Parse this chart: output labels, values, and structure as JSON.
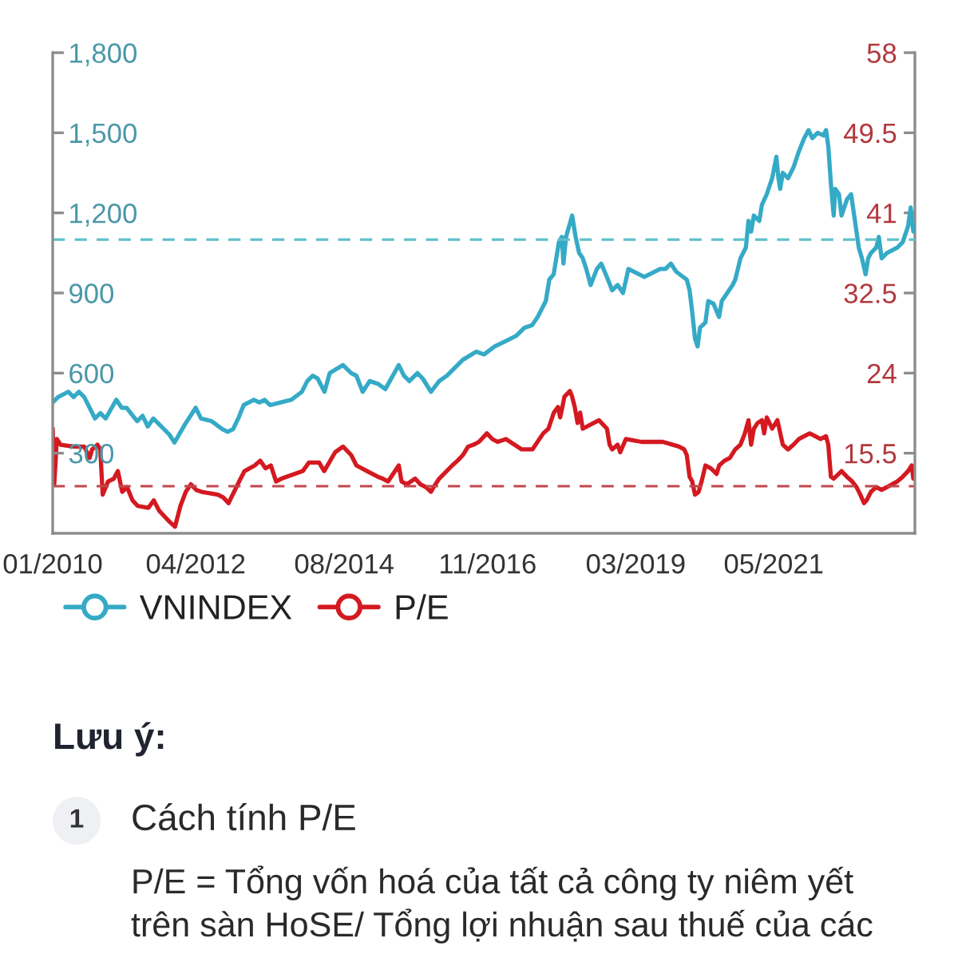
{
  "chart_data": {
    "type": "line",
    "xlim": [
      "2010-01-01",
      "2023-07-20"
    ],
    "xticks": [
      {
        "value": "2010-01",
        "label": "01/2010"
      },
      {
        "value": "2012-04",
        "label": "04/2012"
      },
      {
        "value": "2014-08",
        "label": "08/2014"
      },
      {
        "value": "2016-11",
        "label": "11/2016"
      },
      {
        "value": "2019-03",
        "label": "03/2019"
      },
      {
        "value": "2021-05",
        "label": "05/2021"
      }
    ],
    "ylim": [
      0,
      1800
    ],
    "yticks": [
      300,
      600,
      900,
      {
        "value": 1200,
        "label": "1,200"
      },
      {
        "value": 1500,
        "label": "1,500"
      },
      {
        "value": 1800,
        "label": "1,800"
      }
    ],
    "y2lim": [
      7,
      58
    ],
    "y2ticks": [
      15.5,
      24,
      32.5,
      41,
      49.5,
      58
    ],
    "series": [
      {
        "name": "VNINDEX",
        "color": "#35aac6",
        "x": [
          "2010-01-01",
          "2010-02-01",
          "2010-04-01",
          "2010-05-01",
          "2010-06-01",
          "2010-07-01",
          "2010-09-01",
          "2010-10-01",
          "2010-11-01",
          "2011-01-01",
          "2011-02-01",
          "2011-03-01",
          "2011-05-01",
          "2011-06-01",
          "2011-07-01",
          "2011-08-01",
          "2011-09-01",
          "2011-11-01",
          "2011-12-01",
          "2012-02-01",
          "2012-04-01",
          "2012-05-01",
          "2012-07-01",
          "2012-09-01",
          "2012-10-01",
          "2012-11-01",
          "2012-12-01",
          "2013-01-01",
          "2013-03-01",
          "2013-04-01",
          "2013-05-01",
          "2013-06-01",
          "2013-08-01",
          "2013-10-01",
          "2013-12-01",
          "2014-01-01",
          "2014-02-01",
          "2014-03-01",
          "2014-04-10",
          "2014-05-10",
          "2014-07-25",
          "2014-09-10",
          "2014-10-10",
          "2014-11-15",
          "2014-12-25",
          "2015-02-10",
          "2015-03-25",
          "2015-06-10",
          "2015-07-10",
          "2015-08-10",
          "2015-09-25",
          "2015-10-25",
          "2015-12-12",
          "2016-01-28",
          "2016-03-12",
          "2016-05-12",
          "2016-06-12",
          "2016-08-28",
          "2016-10-12",
          "2016-12-12",
          "2017-02-14",
          "2017-04-15",
          "2017-06-01",
          "2017-07-15",
          "2017-08-15",
          "2017-10-01",
          "2017-10-21",
          "2017-11-15",
          "2017-12-15",
          "2018-01-01",
          "2018-01-10",
          "2018-01-25",
          "2018-03-01",
          "2018-03-21",
          "2018-04-10",
          "2018-05-01",
          "2018-05-21",
          "2018-06-15",
          "2018-07-21",
          "2018-08-15",
          "2018-09-10",
          "2018-10-17",
          "2018-11-17",
          "2018-12-18",
          "2019-01-18",
          "2019-04-19",
          "2019-07-19",
          "2019-08-19",
          "2019-09-19",
          "2019-10-19",
          "2019-12-19",
          "2020-01-04",
          "2020-01-19",
          "2020-02-04",
          "2020-02-19",
          "2020-03-04",
          "2020-04-04",
          "2020-04-20",
          "2020-05-20",
          "2020-06-21",
          "2020-07-07",
          "2020-08-07",
          "2020-09-07",
          "2020-09-22",
          "2020-10-22",
          "2020-11-22",
          "2020-12-07",
          "2020-12-22",
          "2021-01-07",
          "2021-02-07",
          "2021-02-22",
          "2021-03-22",
          "2021-04-22",
          "2021-05-16",
          "2021-05-28",
          "2021-06-07",
          "2021-06-22",
          "2021-07-22",
          "2021-08-22",
          "2021-09-22",
          "2021-10-23",
          "2021-11-17",
          "2021-12-08",
          "2022-01-08",
          "2022-02-10",
          "2022-02-25",
          "2022-03-10",
          "2022-03-25",
          "2022-04-10",
          "2022-04-19",
          "2022-05-10",
          "2022-05-25",
          "2022-06-25",
          "2022-07-19",
          "2022-08-10",
          "2022-09-01",
          "2022-09-19",
          "2022-10-10",
          "2022-10-25",
          "2022-11-10",
          "2022-12-10",
          "2022-12-25",
          "2023-01-10",
          "2023-02-10",
          "2023-04-10",
          "2023-05-11",
          "2023-06-11",
          "2023-06-26",
          "2023-07-11"
        ],
        "values": [
          490,
          510,
          530,
          510,
          530,
          510,
          430,
          450,
          430,
          500,
          470,
          470,
          420,
          440,
          400,
          430,
          410,
          370,
          340,
          410,
          470,
          430,
          420,
          390,
          380,
          390,
          430,
          480,
          500,
          490,
          500,
          480,
          490,
          500,
          530,
          570,
          590,
          580,
          530,
          600,
          630,
          600,
          590,
          530,
          570,
          560,
          540,
          630,
          590,
          570,
          600,
          580,
          530,
          570,
          590,
          630,
          650,
          680,
          670,
          700,
          720,
          740,
          770,
          780,
          810,
          870,
          950,
          970,
          1090,
          1110,
          1010,
          1110,
          1190,
          1110,
          1050,
          1030,
          990,
          930,
          990,
          1010,
          970,
          910,
          930,
          900,
          990,
          960,
          990,
          990,
          1010,
          980,
          950,
          910,
          830,
          730,
          700,
          770,
          790,
          870,
          860,
          810,
          870,
          900,
          930,
          950,
          1030,
          1070,
          1170,
          1130,
          1190,
          1170,
          1230,
          1270,
          1330,
          1410,
          1330,
          1290,
          1350,
          1330,
          1370,
          1430,
          1480,
          1510,
          1480,
          1500,
          1490,
          1510,
          1450,
          1310,
          1190,
          1290,
          1270,
          1190,
          1250,
          1270,
          1170,
          1070,
          1030,
          970,
          1030,
          1050,
          1070,
          1110,
          1030,
          1050,
          1070,
          1090,
          1150,
          1220,
          1130
        ]
      },
      {
        "name": "P/E",
        "color": "#d41920",
        "axis": "y2",
        "x": [
          "2010-01-01",
          "2010-01-10",
          "2010-01-25",
          "2010-02-15",
          "2010-05-01",
          "2010-07-01",
          "2010-08-01",
          "2010-08-15",
          "2010-09-15",
          "2010-10-01",
          "2010-10-15",
          "2010-11-15",
          "2010-12-18",
          "2011-01-10",
          "2011-02-04",
          "2011-03-04",
          "2011-04-04",
          "2011-05-04",
          "2011-07-04",
          "2011-08-04",
          "2011-09-04",
          "2011-10-04",
          "2011-11-04",
          "2011-12-04",
          "2012-01-04",
          "2012-02-04",
          "2012-03-04",
          "2012-04-04",
          "2012-05-04",
          "2012-08-06",
          "2012-09-06",
          "2012-10-06",
          "2012-12-06",
          "2013-01-06",
          "2013-03-06",
          "2013-04-06",
          "2013-05-06",
          "2013-06-06",
          "2013-07-06",
          "2013-08-06",
          "2013-12-06",
          "2014-01-10",
          "2014-03-10",
          "2014-04-08",
          "2014-06-10",
          "2014-07-25",
          "2014-09-10",
          "2014-10-10",
          "2014-12-10",
          "2015-02-10",
          "2015-03-10",
          "2015-04-10",
          "2015-06-10",
          "2015-06-26",
          "2015-07-26",
          "2015-09-12",
          "2015-10-12",
          "2015-11-12",
          "2015-12-12",
          "2015-12-27",
          "2016-01-28",
          "2016-04-12",
          "2016-05-12",
          "2016-06-12",
          "2016-07-12",
          "2016-08-12",
          "2016-09-12",
          "2016-10-28",
          "2016-11-28",
          "2016-12-28",
          "2017-02-14",
          "2017-05-16",
          "2017-07-16",
          "2017-09-16",
          "2017-10-16",
          "2017-11-16",
          "2017-12-10",
          "2017-12-22",
          "2018-01-04",
          "2018-01-16",
          "2018-02-16",
          "2018-03-01",
          "2018-03-16",
          "2018-04-01",
          "2018-04-16",
          "2018-05-01",
          "2018-07-02",
          "2018-08-02",
          "2018-09-17",
          "2018-10-02",
          "2018-10-17",
          "2018-11-17",
          "2018-12-02",
          "2019-01-03",
          "2019-04-03",
          "2019-06-04",
          "2019-08-04",
          "2019-11-04",
          "2019-12-04",
          "2019-12-19",
          "2020-01-04",
          "2020-01-19",
          "2020-02-04",
          "2020-02-25",
          "2020-03-13",
          "2020-04-04",
          "2020-05-05",
          "2020-06-07",
          "2020-06-22",
          "2020-07-22",
          "2020-08-22",
          "2020-09-22",
          "2020-10-22",
          "2020-11-16",
          "2020-12-07",
          "2020-12-22",
          "2021-01-07",
          "2021-01-28",
          "2021-02-22",
          "2021-03-07",
          "2021-03-22",
          "2021-04-22",
          "2021-05-22",
          "2021-06-22",
          "2021-07-22",
          "2021-08-22",
          "2021-09-22",
          "2021-10-23",
          "2021-11-23",
          "2022-01-25",
          "2022-02-25",
          "2022-03-10",
          "2022-03-25",
          "2022-04-10",
          "2022-05-25",
          "2022-06-25",
          "2022-07-25",
          "2022-08-19",
          "2022-09-10",
          "2022-10-01",
          "2022-10-16",
          "2022-11-10",
          "2022-12-10",
          "2023-01-10",
          "2023-02-10",
          "2023-04-10",
          "2023-05-11",
          "2023-06-11",
          "2023-07-02",
          "2023-07-11"
        ],
        "values": [
          18.1,
          12.2,
          17.0,
          16.4,
          16.2,
          16.2,
          15.0,
          15.9,
          16.4,
          15.9,
          11.1,
          12.5,
          12.8,
          13.6,
          11.4,
          11.9,
          10.5,
          9.9,
          9.7,
          10.5,
          9.4,
          8.8,
          8.2,
          7.7,
          9.9,
          11.4,
          12.2,
          11.6,
          11.4,
          11.1,
          10.8,
          10.2,
          12.5,
          13.6,
          14.2,
          14.7,
          13.9,
          14.2,
          12.5,
          12.8,
          13.6,
          14.5,
          14.5,
          13.6,
          15.6,
          16.2,
          15.3,
          14.2,
          13.6,
          13.0,
          12.8,
          12.5,
          14.2,
          12.5,
          12.2,
          12.8,
          12.2,
          11.9,
          11.4,
          11.9,
          12.8,
          14.2,
          14.7,
          15.3,
          16.2,
          16.4,
          16.7,
          17.6,
          17.0,
          16.7,
          17.0,
          15.9,
          15.9,
          17.6,
          18.1,
          19.8,
          20.4,
          19.3,
          20.4,
          21.5,
          22.1,
          21.5,
          20.4,
          18.7,
          19.8,
          18.1,
          18.7,
          19.0,
          18.1,
          16.4,
          15.9,
          16.4,
          15.6,
          17.0,
          16.7,
          16.7,
          16.7,
          16.2,
          15.9,
          15.3,
          13.0,
          12.5,
          11.1,
          11.4,
          12.5,
          14.2,
          13.9,
          13.3,
          14.2,
          14.7,
          15.0,
          15.9,
          16.4,
          17.6,
          19.0,
          16.4,
          18.1,
          18.7,
          19.0,
          17.6,
          19.3,
          18.1,
          19.0,
          16.4,
          15.9,
          16.4,
          17.0,
          17.3,
          17.6,
          17.0,
          17.3,
          16.4,
          13.0,
          12.8,
          13.6,
          13.0,
          12.5,
          11.9,
          11.1,
          10.2,
          10.5,
          11.4,
          11.9,
          11.6,
          11.9,
          12.5,
          13.0,
          13.6,
          14.2,
          12.8
        ]
      }
    ],
    "ref_lines": [
      {
        "axis": "y",
        "value": 1100,
        "color": "#5fc0cc",
        "line_style": "dashed"
      },
      {
        "axis": "y2",
        "value": 12,
        "color": "#c2474d",
        "line_style": "dashed"
      }
    ],
    "grid": false,
    "legend": "bottom",
    "annotations": [
      "Lưu ý:",
      "1",
      "Cách tính P/E",
      "P/E = Tổng vốn hoá của tất cả công ty niêm yết",
      "trên sàn HoSE/ Tổng lợi nhuận sau thuế của các"
    ]
  }
}
